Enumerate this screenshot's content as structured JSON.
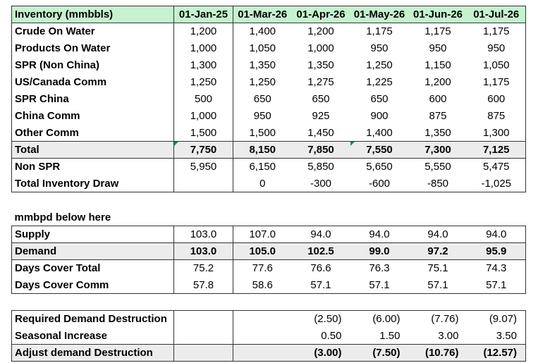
{
  "headers": [
    "Inventory (mmbbls)",
    "01-Jan-25",
    "01-Mar-26",
    "01-Apr-26",
    "01-May-26",
    "01-Jun-26",
    "01-Jul-26"
  ],
  "inventory_rows": [
    {
      "label": "Crude On Water",
      "values": [
        "1,200",
        "1,400",
        "1,200",
        "1,175",
        "1,175",
        "1,175"
      ]
    },
    {
      "label": "Products On Water",
      "values": [
        "1,000",
        "1,050",
        "1,000",
        "950",
        "950",
        "950"
      ]
    },
    {
      "label": "SPR (Non China)",
      "values": [
        "1,300",
        "1,350",
        "1,350",
        "1,250",
        "1,150",
        "1,050"
      ]
    },
    {
      "label": "US/Canada Comm",
      "values": [
        "1,250",
        "1,250",
        "1,275",
        "1,225",
        "1,200",
        "1,175"
      ]
    },
    {
      "label": "SPR China",
      "values": [
        "500",
        "650",
        "650",
        "650",
        "600",
        "600"
      ]
    },
    {
      "label": "China Comm",
      "values": [
        "1,000",
        "950",
        "925",
        "900",
        "875",
        "875"
      ]
    },
    {
      "label": "Other Comm",
      "values": [
        "1,500",
        "1,500",
        "1,450",
        "1,400",
        "1,350",
        "1,300"
      ]
    }
  ],
  "total_row": {
    "label": "Total",
    "values": [
      "7,750",
      "8,150",
      "7,850",
      "7,550",
      "7,300",
      "7,125"
    ]
  },
  "non_spr_row": {
    "label": "Non SPR",
    "values": [
      "5,950",
      "6,150",
      "5,850",
      "5,650",
      "5,550",
      "5,475"
    ]
  },
  "draw_row": {
    "label": "Total Inventory Draw",
    "values": [
      "",
      "0",
      "-300",
      "-600",
      "-850",
      "-1,025"
    ]
  },
  "section_label": "mmbpd below here",
  "supply_row": {
    "label": "Supply",
    "values": [
      "103.0",
      "107.0",
      "94.0",
      "94.0",
      "94.0",
      "94.0"
    ]
  },
  "demand_row": {
    "label": "Demand",
    "values": [
      "103.0",
      "105.0",
      "102.5",
      "99.0",
      "97.2",
      "95.9"
    ]
  },
  "days_total_row": {
    "label": "Days Cover Total",
    "values": [
      "75.2",
      "77.6",
      "76.6",
      "76.3",
      "75.1",
      "74.3"
    ]
  },
  "days_comm_row": {
    "label": "Days Cover Comm",
    "values": [
      "57.8",
      "58.6",
      "57.1",
      "57.1",
      "57.1",
      "57.1"
    ]
  },
  "req_row": {
    "label": "Required Demand Destruction",
    "values": [
      "",
      "",
      "(2.50)",
      "(6.00)",
      "(7.76)",
      "(9.07)"
    ]
  },
  "seasonal_row": {
    "label": "Seasonal Increase",
    "values": [
      "",
      "",
      "0.50",
      "1.50",
      "3.00",
      "3.50"
    ]
  },
  "adjust_row": {
    "label": "Adjust demand Destruction",
    "values": [
      "",
      "",
      "(3.00)",
      "(7.50)",
      "(10.76)",
      "(12.57)"
    ]
  }
}
